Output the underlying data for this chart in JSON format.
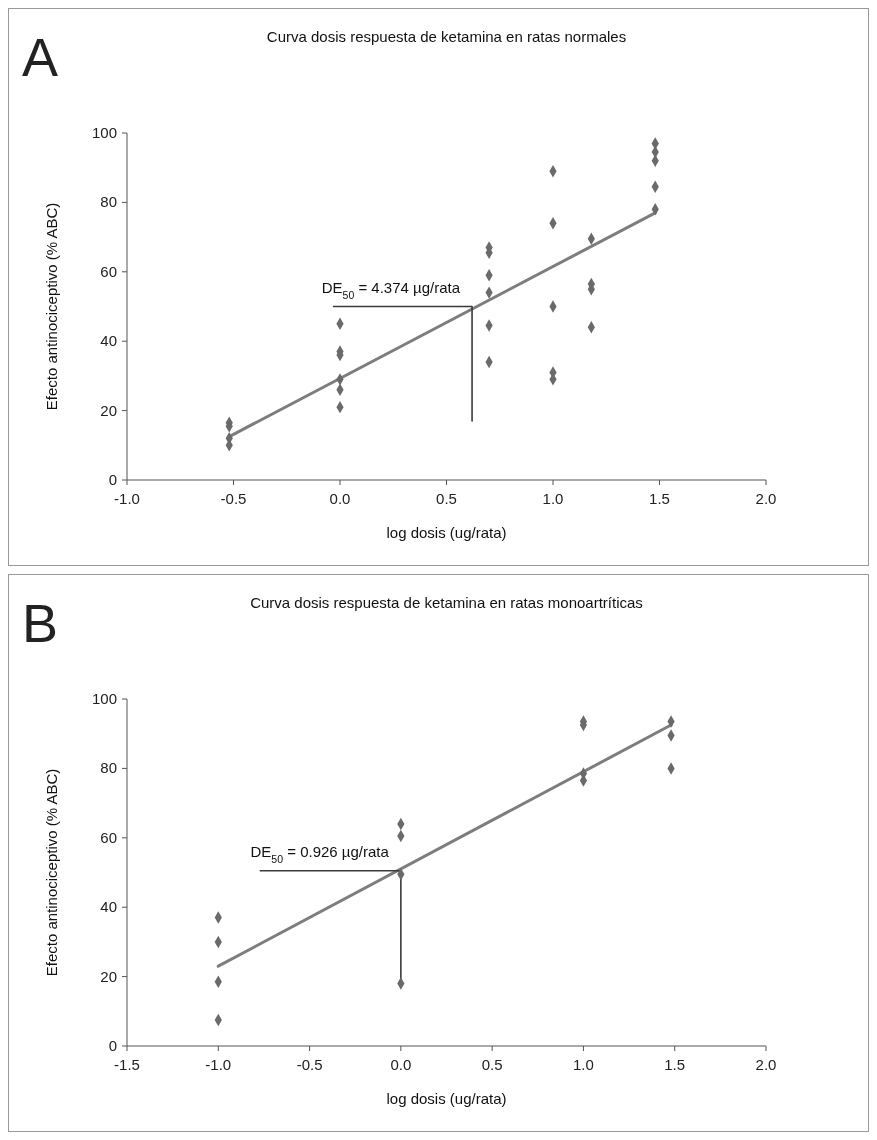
{
  "chart_data": [
    {
      "type": "scatter",
      "title": "Curva dosis respuesta de ketamina en ratas normales",
      "xlabel": "log dosis (ug/rata)",
      "ylabel": "Efecto antinociceptivo (% ABC)",
      "annotations": [
        "A",
        {
          "text": "DE$_{50}$ = 4.374 µg/rata",
          "x": 0.62,
          "y": 50
        }
      ],
      "xlim": [
        -1.0,
        2.0
      ],
      "xticks": [
        {
          "value": -1.0,
          "label": "-1.0"
        },
        {
          "value": -0.5,
          "label": "-0.5"
        },
        {
          "value": 0,
          "label": "0.0"
        },
        {
          "value": 0.5,
          "label": "0.5"
        },
        {
          "value": 1.0,
          "label": "1.0"
        },
        {
          "value": 1.5,
          "label": "1.5"
        },
        {
          "value": 2.0,
          "label": "2.0"
        }
      ],
      "ylim": [
        0,
        100
      ],
      "yticks": [
        0,
        20,
        40,
        60,
        80,
        100
      ],
      "grid": false,
      "series": [
        {
          "type": "line",
          "marker": "none",
          "color": "#7d7d7d",
          "x": [
            -0.52,
            1.48
          ],
          "values": [
            12.5,
            77
          ]
        },
        {
          "type": "line",
          "marker": "none",
          "color": "#3a3a3a",
          "x": [
            -0.03,
            0.62,
            0.62
          ],
          "values": [
            50,
            50,
            17
          ]
        },
        {
          "marker": "diamond",
          "color": "#6a6a6a",
          "x": [
            -0.52,
            -0.52,
            -0.52,
            -0.52,
            0,
            0,
            0,
            0,
            0,
            0,
            0.7,
            0.7,
            0.7,
            0.7,
            0.7,
            0.7,
            1.0,
            1.0,
            1.0,
            1.0,
            1.0,
            1.18,
            1.18,
            1.18,
            1.18,
            1.48,
            1.48,
            1.48,
            1.48,
            1.48
          ],
          "values": [
            16.5,
            15.5,
            12,
            10,
            45,
            37,
            36,
            29,
            26,
            21,
            67,
            65.5,
            59,
            54,
            44.5,
            34,
            89,
            74,
            50,
            31,
            29,
            69.5,
            56.5,
            55,
            44,
            97,
            94.5,
            92,
            84.5,
            78
          ]
        }
      ]
    },
    {
      "type": "scatter",
      "title": "Curva dosis respuesta de ketamina en ratas monoartríticas",
      "xlabel": "log dosis (ug/rata)",
      "ylabel": "Efecto antinociceptivo (% ABC)",
      "annotations": [
        "B",
        {
          "text": "DE$_{50}$ = 0.926 µg/rata",
          "x": 0,
          "y": 50.5
        }
      ],
      "xlim": [
        -1.5,
        2.0
      ],
      "xticks": [
        {
          "value": -1.5,
          "label": "-1.5"
        },
        {
          "value": -1.0,
          "label": "-1.0"
        },
        {
          "value": -0.5,
          "label": "-0.5"
        },
        {
          "value": 0,
          "label": "0.0"
        },
        {
          "value": 0.5,
          "label": "0.5"
        },
        {
          "value": 1.0,
          "label": "1.0"
        },
        {
          "value": 1.5,
          "label": "1.5"
        },
        {
          "value": 2.0,
          "label": "2.0"
        }
      ],
      "ylim": [
        0,
        100
      ],
      "yticks": [
        0,
        20,
        40,
        60,
        80,
        100
      ],
      "grid": false,
      "series": [
        {
          "type": "line",
          "marker": "none",
          "color": "#7d7d7d",
          "x": [
            -1.0,
            1.48
          ],
          "values": [
            23,
            92.5
          ]
        },
        {
          "type": "line",
          "marker": "none",
          "color": "#3a3a3a",
          "x": [
            -0.77,
            0,
            0
          ],
          "values": [
            50.5,
            50.5,
            18
          ]
        },
        {
          "marker": "diamond",
          "color": "#6a6a6a",
          "x": [
            -1.0,
            -1.0,
            -1.0,
            -1.0,
            0,
            0,
            0,
            0,
            1.0,
            1.0,
            1.0,
            1.0,
            1.48,
            1.48,
            1.48
          ],
          "values": [
            37,
            30,
            18.5,
            7.5,
            64,
            60.5,
            49.5,
            18,
            93.5,
            92.5,
            78.5,
            76.5,
            93.5,
            89.5,
            80
          ]
        }
      ]
    }
  ]
}
